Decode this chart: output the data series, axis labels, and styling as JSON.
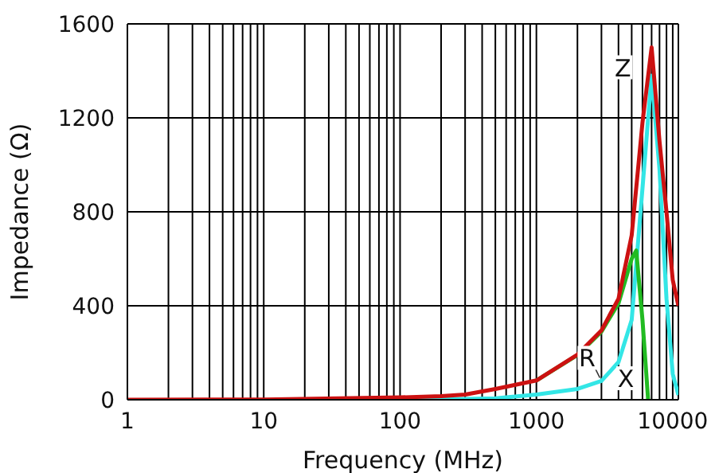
{
  "chart_data": {
    "type": "line",
    "xlabel": "Frequency (MHz)",
    "ylabel": "Impedance (Ω)",
    "log": "x",
    "grid": true,
    "legend": false,
    "marker": "none",
    "line_style": "solid",
    "xlim": [
      1,
      11000
    ],
    "ylim": [
      0,
      1600
    ],
    "yticks": [
      0,
      400,
      800,
      1200,
      1600
    ],
    "xticks": [
      1,
      {
        "value": 2,
        "label": null
      },
      {
        "value": 3,
        "label": null
      },
      {
        "value": 4,
        "label": null
      },
      {
        "value": 5,
        "label": null
      },
      {
        "value": 6,
        "label": null
      },
      {
        "value": 7,
        "label": null
      },
      {
        "value": 8,
        "label": null
      },
      {
        "value": 9,
        "label": null
      },
      10,
      {
        "value": 20,
        "label": null
      },
      {
        "value": 30,
        "label": null
      },
      {
        "value": 40,
        "label": null
      },
      {
        "value": 50,
        "label": null
      },
      {
        "value": 60,
        "label": null
      },
      {
        "value": 70,
        "label": null
      },
      {
        "value": 80,
        "label": null
      },
      {
        "value": 90,
        "label": null
      },
      100,
      {
        "value": 200,
        "label": null
      },
      {
        "value": 300,
        "label": null
      },
      {
        "value": 400,
        "label": null
      },
      {
        "value": 500,
        "label": null
      },
      {
        "value": 600,
        "label": null
      },
      {
        "value": 700,
        "label": null
      },
      {
        "value": 800,
        "label": null
      },
      {
        "value": 900,
        "label": null
      },
      1000,
      {
        "value": 2000,
        "label": null
      },
      {
        "value": 3000,
        "label": null
      },
      {
        "value": 4000,
        "label": null
      },
      {
        "value": 5000,
        "label": null
      },
      {
        "value": 6000,
        "label": null
      },
      {
        "value": 7000,
        "label": null
      },
      {
        "value": 8000,
        "label": null
      },
      {
        "value": 9000,
        "label": null
      },
      10000
    ],
    "series": [
      {
        "name": "R",
        "color": "#33e6e6",
        "x": [
          100,
          300,
          500,
          1000,
          2000,
          3000,
          4000,
          5000,
          6000,
          7000,
          8000,
          9000,
          10000,
          11000
        ],
        "values": [
          0,
          3,
          6,
          22,
          46,
          80,
          160,
          340,
          900,
          1380,
          980,
          430,
          110,
          20
        ]
      },
      {
        "name": "X",
        "color": "#22bb22",
        "x": [
          1000,
          2000,
          3000,
          4000,
          5000,
          5400,
          6000,
          6600
        ],
        "values": [
          82,
          190,
          290,
          410,
          600,
          635,
          340,
          0
        ]
      },
      {
        "name": "Z",
        "color": "#cc1111",
        "x": [
          1,
          10,
          100,
          200,
          300,
          500,
          1000,
          2000,
          3000,
          4000,
          5000,
          6000,
          7000,
          8000,
          9000,
          10000,
          11000
        ],
        "values": [
          0,
          1,
          10,
          15,
          22,
          46,
          82,
          192,
          295,
          430,
          700,
          1180,
          1500,
          1100,
          800,
          510,
          400
        ]
      }
    ]
  }
}
